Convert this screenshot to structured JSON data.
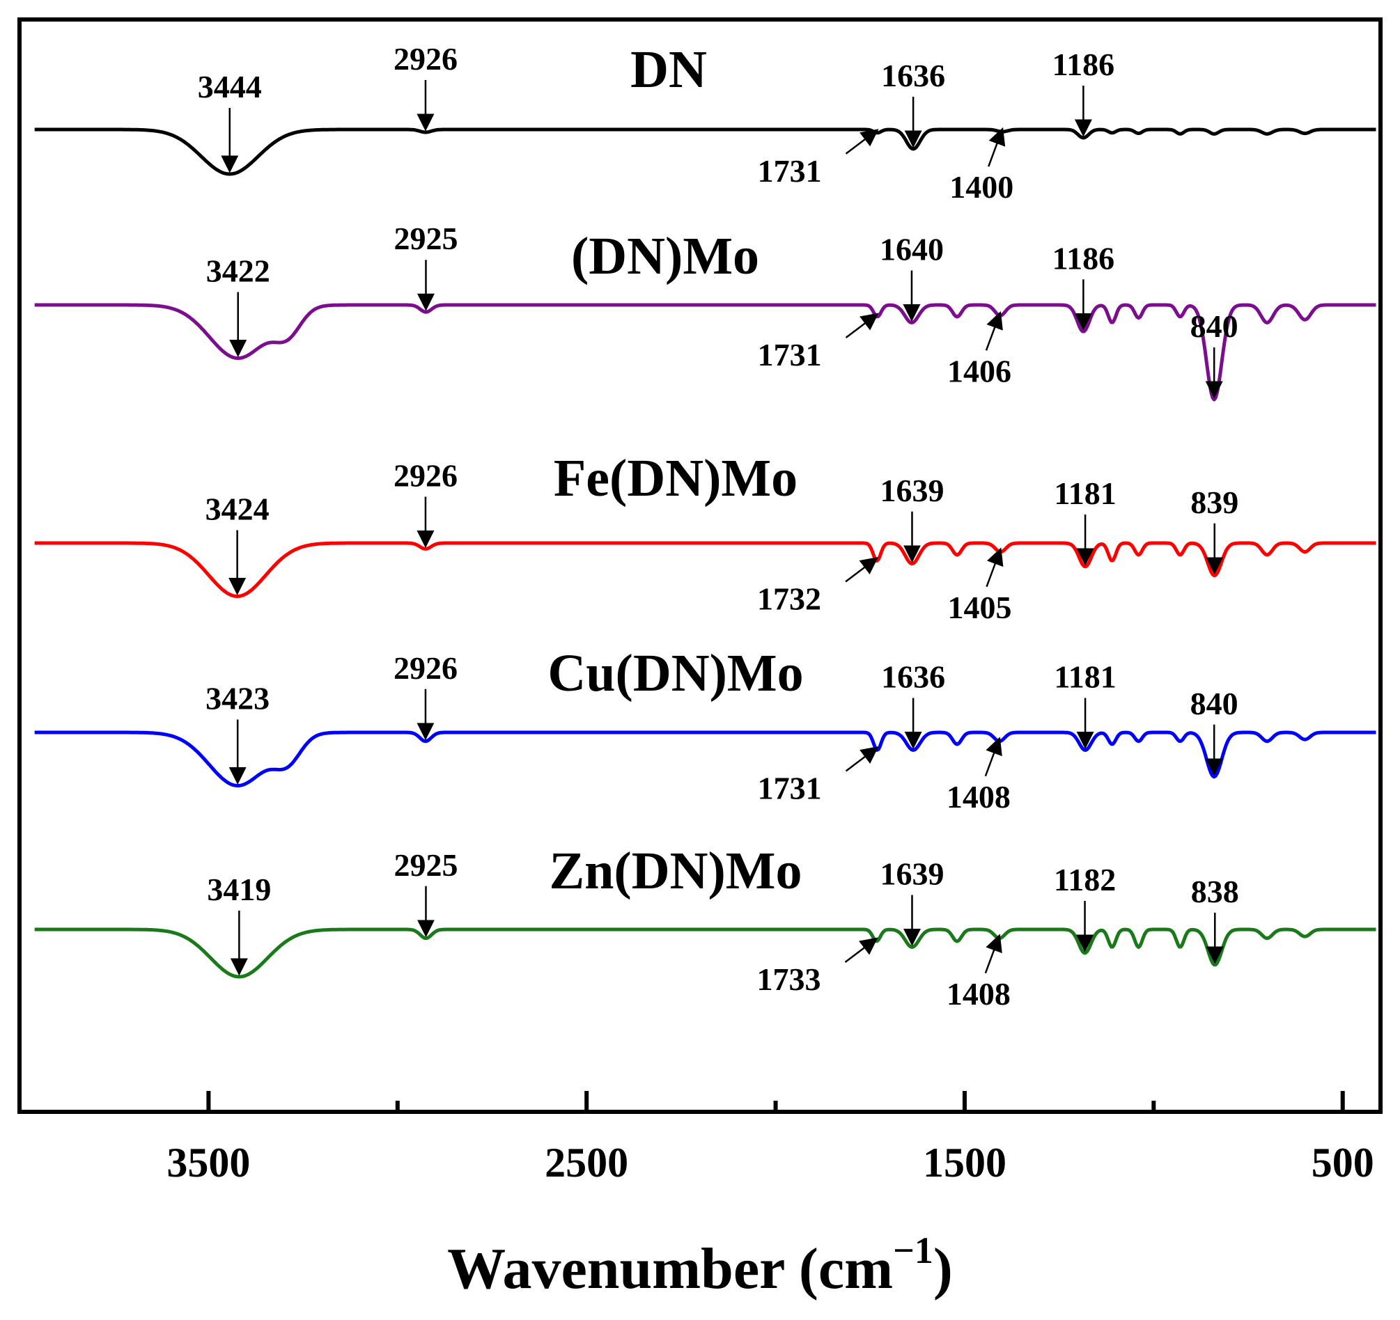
{
  "chart_data": {
    "type": "line",
    "title": "",
    "xlabel": "Wavenumber (cm",
    "xlabel_sup": "−1",
    "xlabel_close": ")",
    "ylabel": "",
    "xlim": [
      4000,
      400
    ],
    "x_reversed": true,
    "grid": false,
    "major_ticks": [
      3500,
      2500,
      1500,
      500
    ],
    "minor_ticks": [
      3000,
      2000,
      1000
    ],
    "tick_labels": [
      "3500",
      "2500",
      "1500",
      "500"
    ],
    "series": [
      {
        "name": "DN",
        "color": "#000000",
        "baseline": 0.0,
        "bands": [
          [
            3444,
            75,
            0.8
          ],
          [
            2926,
            15,
            0.05
          ],
          [
            1731,
            10,
            0.06
          ],
          [
            1636,
            18,
            0.35
          ],
          [
            1400,
            14,
            0.04
          ],
          [
            1186,
            14,
            0.15
          ],
          [
            1110,
            10,
            0.06
          ],
          [
            1040,
            10,
            0.07
          ],
          [
            930,
            10,
            0.08
          ],
          [
            840,
            12,
            0.08
          ],
          [
            700,
            14,
            0.08
          ],
          [
            600,
            14,
            0.07
          ]
        ],
        "annotations": [
          {
            "text": "3444",
            "wn": 3444
          },
          {
            "text": "2926",
            "wn": 2926
          },
          {
            "text": "1636",
            "wn": 1636
          },
          {
            "text": "1731",
            "wn": 1731
          },
          {
            "text": "1400",
            "wn": 1400
          },
          {
            "text": "1186",
            "wn": 1186
          }
        ]
      },
      {
        "name": "(DN)Mo",
        "color": "#7b0d8e",
        "baseline": 1.0,
        "bands": [
          [
            3422,
            75,
            0.9
          ],
          [
            3290,
            35,
            0.4
          ],
          [
            2925,
            15,
            0.12
          ],
          [
            1731,
            10,
            0.2
          ],
          [
            1640,
            18,
            0.3
          ],
          [
            1520,
            12,
            0.2
          ],
          [
            1406,
            14,
            0.18
          ],
          [
            1186,
            16,
            0.45
          ],
          [
            1110,
            10,
            0.3
          ],
          [
            1040,
            10,
            0.22
          ],
          [
            930,
            10,
            0.2
          ],
          [
            840,
            20,
            1.6
          ],
          [
            700,
            16,
            0.3
          ],
          [
            600,
            16,
            0.25
          ]
        ],
        "annotations": [
          {
            "text": "3422",
            "wn": 3422
          },
          {
            "text": "2925",
            "wn": 2925
          },
          {
            "text": "1640",
            "wn": 1640
          },
          {
            "text": "1731",
            "wn": 1731
          },
          {
            "text": "1406",
            "wn": 1406
          },
          {
            "text": "1186",
            "wn": 1186
          },
          {
            "text": "840",
            "wn": 840
          }
        ]
      },
      {
        "name": "Fe(DN)Mo",
        "color": "#ff0000",
        "baseline": 2.0,
        "bands": [
          [
            3424,
            75,
            0.9
          ],
          [
            2926,
            15,
            0.1
          ],
          [
            1732,
            10,
            0.3
          ],
          [
            1639,
            18,
            0.35
          ],
          [
            1520,
            12,
            0.2
          ],
          [
            1405,
            14,
            0.15
          ],
          [
            1181,
            16,
            0.4
          ],
          [
            1110,
            10,
            0.3
          ],
          [
            1040,
            10,
            0.2
          ],
          [
            930,
            10,
            0.2
          ],
          [
            839,
            18,
            0.55
          ],
          [
            700,
            14,
            0.2
          ],
          [
            600,
            14,
            0.15
          ]
        ],
        "annotations": [
          {
            "text": "3424",
            "wn": 3424
          },
          {
            "text": "2926",
            "wn": 2926
          },
          {
            "text": "1639",
            "wn": 1639
          },
          {
            "text": "1732",
            "wn": 1732
          },
          {
            "text": "1405",
            "wn": 1405
          },
          {
            "text": "1181",
            "wn": 1181
          },
          {
            "text": "839",
            "wn": 839
          }
        ]
      },
      {
        "name": "Cu(DN)Mo",
        "color": "#0000ff",
        "baseline": 3.0,
        "bands": [
          [
            3423,
            75,
            0.9
          ],
          [
            3290,
            35,
            0.4
          ],
          [
            2926,
            15,
            0.15
          ],
          [
            1731,
            10,
            0.3
          ],
          [
            1636,
            18,
            0.3
          ],
          [
            1520,
            12,
            0.2
          ],
          [
            1408,
            14,
            0.15
          ],
          [
            1181,
            16,
            0.3
          ],
          [
            1110,
            10,
            0.2
          ],
          [
            1040,
            10,
            0.15
          ],
          [
            930,
            10,
            0.15
          ],
          [
            840,
            20,
            0.75
          ],
          [
            700,
            14,
            0.15
          ],
          [
            600,
            14,
            0.12
          ]
        ],
        "annotations": [
          {
            "text": "3423",
            "wn": 3423
          },
          {
            "text": "2926",
            "wn": 2926
          },
          {
            "text": "1636",
            "wn": 1636
          },
          {
            "text": "1731",
            "wn": 1731
          },
          {
            "text": "1408",
            "wn": 1408
          },
          {
            "text": "1181",
            "wn": 1181
          },
          {
            "text": "840",
            "wn": 840
          }
        ]
      },
      {
        "name": "Zn(DN)Mo",
        "color": "#1a7a1a",
        "baseline": 4.0,
        "bands": [
          [
            3419,
            75,
            0.8
          ],
          [
            2925,
            15,
            0.15
          ],
          [
            1733,
            10,
            0.2
          ],
          [
            1639,
            18,
            0.3
          ],
          [
            1520,
            12,
            0.2
          ],
          [
            1408,
            14,
            0.15
          ],
          [
            1182,
            16,
            0.4
          ],
          [
            1110,
            10,
            0.3
          ],
          [
            1040,
            10,
            0.3
          ],
          [
            930,
            10,
            0.3
          ],
          [
            838,
            18,
            0.6
          ],
          [
            700,
            14,
            0.15
          ],
          [
            600,
            14,
            0.12
          ]
        ],
        "annotations": [
          {
            "text": "3419",
            "wn": 3419
          },
          {
            "text": "2925",
            "wn": 2925
          },
          {
            "text": "1639",
            "wn": 1639
          },
          {
            "text": "1733",
            "wn": 1733
          },
          {
            "text": "1408",
            "wn": 1408
          },
          {
            "text": "1182",
            "wn": 1182
          },
          {
            "text": "838",
            "wn": 838
          }
        ]
      }
    ]
  }
}
